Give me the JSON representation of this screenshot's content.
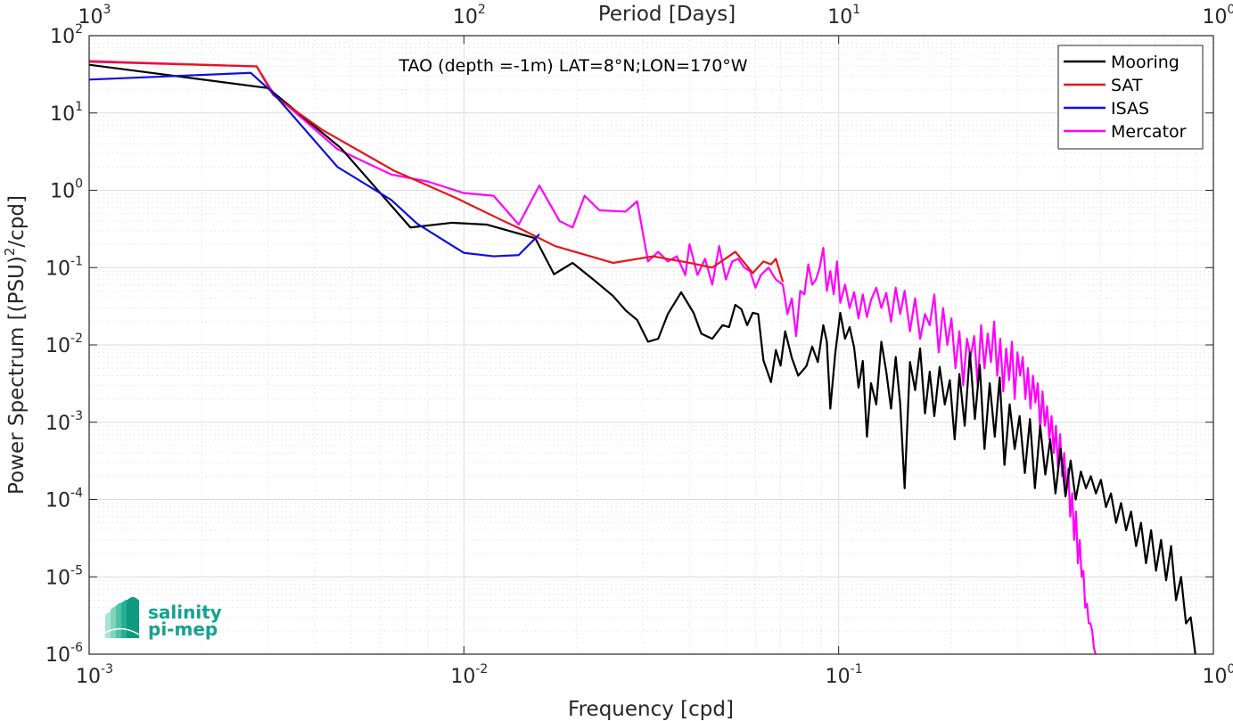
{
  "chart_data": {
    "type": "line",
    "title": "TAO (depth =-1m) LAT=8°N;LON=170°W",
    "xlabel": "Frequency [cpd]",
    "ylabel": "Power Spectrum [(PSU)²/cpd]",
    "top_xlabel": "Period [Days]",
    "xscale": "log",
    "yscale": "log",
    "xlim": [
      0.001,
      1
    ],
    "ylim": [
      1e-06,
      100
    ],
    "x_ticks": [
      {
        "value": 0.001,
        "base": "10",
        "exp": "-3"
      },
      {
        "value": 0.01,
        "base": "10",
        "exp": "-2"
      },
      {
        "value": 0.1,
        "base": "10",
        "exp": "-1"
      },
      {
        "value": 1,
        "base": "10",
        "exp": "0"
      }
    ],
    "top_ticks": [
      {
        "value": 0.001,
        "base": "10",
        "exp": "3"
      },
      {
        "value": 0.01,
        "base": "10",
        "exp": "2"
      },
      {
        "value": 0.1,
        "base": "10",
        "exp": "1"
      },
      {
        "value": 1,
        "base": "10",
        "exp": "0"
      }
    ],
    "y_ticks": [
      {
        "value": 1e-06,
        "base": "10",
        "exp": "-6"
      },
      {
        "value": 1e-05,
        "base": "10",
        "exp": "-5"
      },
      {
        "value": 0.0001,
        "base": "10",
        "exp": "-4"
      },
      {
        "value": 0.001,
        "base": "10",
        "exp": "-3"
      },
      {
        "value": 0.01,
        "base": "10",
        "exp": "-2"
      },
      {
        "value": 0.1,
        "base": "10",
        "exp": "-1"
      },
      {
        "value": 1,
        "base": "10",
        "exp": "0"
      },
      {
        "value": 10,
        "base": "10",
        "exp": "1"
      },
      {
        "value": 100,
        "base": "10",
        "exp": "2"
      }
    ],
    "grid": true,
    "legend_position": "top-right",
    "series": [
      {
        "name": "Mooring",
        "color": "#000000",
        "points": [
          [
            0.001,
            42
          ],
          [
            0.003,
            21
          ],
          [
            0.0047,
            3.5
          ],
          [
            0.0072,
            0.33
          ],
          [
            0.0093,
            0.38
          ],
          [
            0.0115,
            0.36
          ],
          [
            0.0135,
            0.29
          ],
          [
            0.0155,
            0.24
          ],
          [
            0.0174,
            0.082
          ],
          [
            0.0195,
            0.115
          ],
          [
            0.022,
            0.072
          ],
          [
            0.025,
            0.043
          ],
          [
            0.027,
            0.028
          ],
          [
            0.029,
            0.021
          ],
          [
            0.031,
            0.011
          ],
          [
            0.033,
            0.012
          ],
          [
            0.035,
            0.025
          ],
          [
            0.038,
            0.048
          ],
          [
            0.041,
            0.026
          ],
          [
            0.043,
            0.014
          ],
          [
            0.046,
            0.012
          ],
          [
            0.049,
            0.018
          ],
          [
            0.051,
            0.017
          ],
          [
            0.053,
            0.033
          ],
          [
            0.055,
            0.029
          ],
          [
            0.057,
            0.018
          ],
          [
            0.059,
            0.026
          ],
          [
            0.061,
            0.025
          ],
          [
            0.063,
            0.0063
          ],
          [
            0.066,
            0.0033
          ],
          [
            0.068,
            0.0086
          ],
          [
            0.07,
            0.0054
          ],
          [
            0.072,
            0.015
          ],
          [
            0.075,
            0.0068
          ],
          [
            0.078,
            0.004
          ],
          [
            0.082,
            0.0053
          ],
          [
            0.085,
            0.0095
          ],
          [
            0.088,
            0.006
          ],
          [
            0.091,
            0.018
          ],
          [
            0.093,
            0.011
          ],
          [
            0.095,
            0.0015
          ],
          [
            0.098,
            0.008
          ],
          [
            0.101,
            0.026
          ],
          [
            0.104,
            0.012
          ],
          [
            0.107,
            0.017
          ],
          [
            0.11,
            0.0092
          ],
          [
            0.113,
            0.0028
          ],
          [
            0.116,
            0.0062
          ],
          [
            0.119,
            0.00065
          ],
          [
            0.122,
            0.0032
          ],
          [
            0.126,
            0.0017
          ],
          [
            0.13,
            0.011
          ],
          [
            0.134,
            0.0045
          ],
          [
            0.138,
            0.0015
          ],
          [
            0.142,
            0.007
          ],
          [
            0.146,
            0.0017
          ],
          [
            0.15,
            0.00014
          ],
          [
            0.155,
            0.006
          ],
          [
            0.16,
            0.0026
          ],
          [
            0.165,
            0.009
          ],
          [
            0.17,
            0.0013
          ],
          [
            0.175,
            0.0045
          ],
          [
            0.18,
            0.0012
          ],
          [
            0.186,
            0.0052
          ],
          [
            0.192,
            0.0017
          ],
          [
            0.198,
            0.0035
          ],
          [
            0.204,
            0.0006
          ],
          [
            0.21,
            0.0042
          ],
          [
            0.217,
            0.0009
          ],
          [
            0.224,
            0.008
          ],
          [
            0.231,
            0.0011
          ],
          [
            0.238,
            0.0055
          ],
          [
            0.245,
            0.00045
          ],
          [
            0.253,
            0.0032
          ],
          [
            0.261,
            0.00065
          ],
          [
            0.269,
            0.0038
          ],
          [
            0.277,
            0.00028
          ],
          [
            0.286,
            0.0017
          ],
          [
            0.295,
            0.00045
          ],
          [
            0.304,
            0.0012
          ],
          [
            0.314,
            0.00022
          ],
          [
            0.324,
            0.0011
          ],
          [
            0.334,
            0.00014
          ],
          [
            0.345,
            0.0009
          ],
          [
            0.356,
            0.00021
          ],
          [
            0.367,
            0.0006
          ],
          [
            0.379,
            0.00012
          ],
          [
            0.391,
            0.00045
          ],
          [
            0.403,
            0.00011
          ],
          [
            0.416,
            0.00032
          ],
          [
            0.429,
            0.0001
          ],
          [
            0.443,
            0.00023
          ],
          [
            0.457,
            0.00014
          ],
          [
            0.471,
            0.0002
          ],
          [
            0.486,
            0.00012
          ],
          [
            0.501,
            0.00018
          ],
          [
            0.517,
            8e-05
          ],
          [
            0.533,
            0.00012
          ],
          [
            0.55,
            5e-05
          ],
          [
            0.567,
            9e-05
          ],
          [
            0.585,
            4e-05
          ],
          [
            0.603,
            7e-05
          ],
          [
            0.622,
            2.5e-05
          ],
          [
            0.641,
            5e-05
          ],
          [
            0.661,
            1.5e-05
          ],
          [
            0.682,
            4e-05
          ],
          [
            0.703,
            1.2e-05
          ],
          [
            0.725,
            3e-05
          ],
          [
            0.748,
            9e-06
          ],
          [
            0.771,
            2.5e-05
          ],
          [
            0.795,
            5e-06
          ],
          [
            0.82,
            1e-05
          ],
          [
            0.845,
            2.5e-06
          ],
          [
            0.87,
            3e-06
          ],
          [
            0.895,
            1e-06
          ]
        ]
      },
      {
        "name": "SAT",
        "color": "#e8141b",
        "points": [
          [
            0.001,
            46
          ],
          [
            0.0028,
            40
          ],
          [
            0.0031,
            17
          ],
          [
            0.0042,
            6
          ],
          [
            0.0065,
            1.8
          ],
          [
            0.0095,
            0.8
          ],
          [
            0.0125,
            0.42
          ],
          [
            0.0145,
            0.3
          ],
          [
            0.0175,
            0.19
          ],
          [
            0.025,
            0.115
          ],
          [
            0.032,
            0.14
          ],
          [
            0.04,
            0.115
          ],
          [
            0.046,
            0.1
          ],
          [
            0.053,
            0.16
          ],
          [
            0.059,
            0.085
          ],
          [
            0.063,
            0.12
          ],
          [
            0.066,
            0.11
          ],
          [
            0.068,
            0.13
          ],
          [
            0.071,
            0.065
          ]
        ]
      },
      {
        "name": "ISAS",
        "color": "#1010e0",
        "points": [
          [
            0.001,
            27
          ],
          [
            0.0027,
            33
          ],
          [
            0.0031,
            18
          ],
          [
            0.0046,
            2
          ],
          [
            0.0064,
            0.75
          ],
          [
            0.0075,
            0.37
          ],
          [
            0.01,
            0.155
          ],
          [
            0.012,
            0.14
          ],
          [
            0.014,
            0.145
          ],
          [
            0.0159,
            0.27
          ]
        ]
      },
      {
        "name": "Mercator",
        "color": "#ff00ff",
        "points": [
          [
            0.001,
            47
          ],
          [
            0.0028,
            40
          ],
          [
            0.0031,
            18
          ],
          [
            0.0046,
            3.4
          ],
          [
            0.0064,
            1.6
          ],
          [
            0.008,
            1.3
          ],
          [
            0.01,
            0.92
          ],
          [
            0.012,
            0.85
          ],
          [
            0.014,
            0.36
          ],
          [
            0.0159,
            1.15
          ],
          [
            0.018,
            0.4
          ],
          [
            0.0195,
            0.33
          ],
          [
            0.021,
            0.85
          ],
          [
            0.023,
            0.55
          ],
          [
            0.027,
            0.53
          ],
          [
            0.029,
            0.72
          ],
          [
            0.031,
            0.12
          ],
          [
            0.033,
            0.16
          ],
          [
            0.035,
            0.12
          ],
          [
            0.037,
            0.14
          ],
          [
            0.039,
            0.08
          ],
          [
            0.04,
            0.2
          ],
          [
            0.042,
            0.08
          ],
          [
            0.044,
            0.13
          ],
          [
            0.046,
            0.06
          ],
          [
            0.048,
            0.19
          ],
          [
            0.05,
            0.07
          ],
          [
            0.052,
            0.12
          ],
          [
            0.054,
            0.13
          ],
          [
            0.056,
            0.1
          ],
          [
            0.058,
            0.09
          ],
          [
            0.06,
            0.055
          ],
          [
            0.062,
            0.08
          ],
          [
            0.065,
            0.1
          ],
          [
            0.068,
            0.07
          ],
          [
            0.071,
            0.06
          ],
          [
            0.073,
            0.025
          ],
          [
            0.075,
            0.04
          ],
          [
            0.077,
            0.013
          ],
          [
            0.079,
            0.05
          ],
          [
            0.081,
            0.045
          ],
          [
            0.083,
            0.11
          ],
          [
            0.085,
            0.06
          ],
          [
            0.087,
            0.07
          ],
          [
            0.089,
            0.1
          ],
          [
            0.091,
            0.18
          ],
          [
            0.093,
            0.05
          ],
          [
            0.095,
            0.09
          ],
          [
            0.097,
            0.045
          ],
          [
            0.099,
            0.12
          ],
          [
            0.101,
            0.035
          ],
          [
            0.104,
            0.06
          ],
          [
            0.107,
            0.03
          ],
          [
            0.11,
            0.048
          ],
          [
            0.113,
            0.022
          ],
          [
            0.116,
            0.045
          ],
          [
            0.119,
            0.023
          ],
          [
            0.122,
            0.038
          ],
          [
            0.126,
            0.055
          ],
          [
            0.13,
            0.03
          ],
          [
            0.134,
            0.047
          ],
          [
            0.138,
            0.02
          ],
          [
            0.142,
            0.055
          ],
          [
            0.146,
            0.025
          ],
          [
            0.15,
            0.05
          ],
          [
            0.155,
            0.015
          ],
          [
            0.16,
            0.04
          ],
          [
            0.165,
            0.012
          ],
          [
            0.17,
            0.025
          ],
          [
            0.175,
            0.018
          ],
          [
            0.18,
            0.045
          ],
          [
            0.185,
            0.008
          ],
          [
            0.19,
            0.03
          ],
          [
            0.195,
            0.01
          ],
          [
            0.2,
            0.022
          ],
          [
            0.205,
            0.005
          ],
          [
            0.21,
            0.015
          ],
          [
            0.215,
            0.003
          ],
          [
            0.22,
            0.012
          ],
          [
            0.225,
            0.007
          ],
          [
            0.23,
            0.013
          ],
          [
            0.235,
            0.003
          ],
          [
            0.24,
            0.018
          ],
          [
            0.245,
            0.005
          ],
          [
            0.25,
            0.014
          ],
          [
            0.255,
            0.006
          ],
          [
            0.26,
            0.02
          ],
          [
            0.265,
            0.004
          ],
          [
            0.27,
            0.012
          ],
          [
            0.275,
            0.0025
          ],
          [
            0.28,
            0.009
          ],
          [
            0.285,
            0.0035
          ],
          [
            0.29,
            0.011
          ],
          [
            0.295,
            0.002
          ],
          [
            0.3,
            0.008
          ],
          [
            0.305,
            0.004
          ],
          [
            0.31,
            0.007
          ],
          [
            0.315,
            0.002
          ],
          [
            0.32,
            0.005
          ],
          [
            0.325,
            0.0015
          ],
          [
            0.33,
            0.004
          ],
          [
            0.335,
            0.0018
          ],
          [
            0.34,
            0.0032
          ],
          [
            0.345,
            0.0008
          ],
          [
            0.35,
            0.0025
          ],
          [
            0.355,
            0.0009
          ],
          [
            0.36,
            0.0016
          ],
          [
            0.365,
            0.0006
          ],
          [
            0.37,
            0.0012
          ],
          [
            0.375,
            0.0004
          ],
          [
            0.38,
            0.0009
          ],
          [
            0.385,
            0.00025
          ],
          [
            0.39,
            0.0007
          ],
          [
            0.395,
            0.0002
          ],
          [
            0.4,
            0.0004
          ],
          [
            0.405,
            0.00012
          ],
          [
            0.41,
            0.00025
          ],
          [
            0.415,
            6e-05
          ],
          [
            0.42,
            0.00012
          ],
          [
            0.425,
            3e-05
          ],
          [
            0.43,
            7e-05
          ],
          [
            0.435,
            1.5e-05
          ],
          [
            0.44,
            3e-05
          ],
          [
            0.445,
            1e-05
          ],
          [
            0.45,
            1.2e-05
          ],
          [
            0.455,
            4e-06
          ],
          [
            0.46,
            4.5e-06
          ],
          [
            0.465,
            2.5e-06
          ],
          [
            0.47,
            2.5e-06
          ],
          [
            0.475,
            2e-06
          ],
          [
            0.48,
            1.2e-06
          ],
          [
            0.485,
            1e-06
          ]
        ]
      }
    ]
  },
  "logo": {
    "line1": "salinity",
    "line2": "pi-mep"
  }
}
